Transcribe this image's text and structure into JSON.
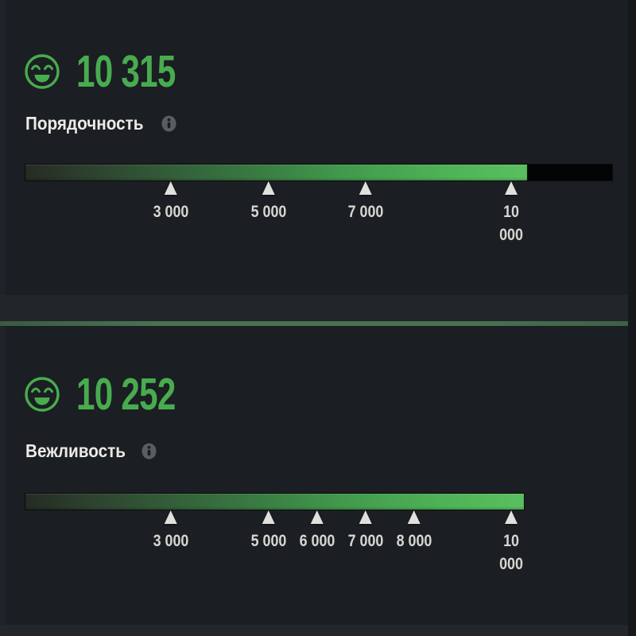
{
  "colors": {
    "accent_green": "#48ac4f",
    "bar_bright_green": "#5abf60",
    "divider_green": "#4a7252",
    "label_white": "#eceae6",
    "tick_gray": "#d6d6d2",
    "panel_bg": "#1b1e22",
    "gutter_bg": "#23262b",
    "empty_track": "#030404",
    "info_gray": "#595d61"
  },
  "panels": [
    {
      "name": "decency",
      "icon": "smiley-face-icon",
      "score_display": "10 315",
      "score_value": 10315,
      "label": "Порядочность",
      "track_full": true,
      "markers": [
        {
          "value": 3000,
          "label": "3 000"
        },
        {
          "value": 5000,
          "label": "5 000"
        },
        {
          "value": 7000,
          "label": "7 000"
        },
        {
          "value": 10000,
          "label": "10 000",
          "wrap": true
        }
      ]
    },
    {
      "name": "politeness",
      "icon": "smiley-face-icon",
      "score_display": "10 252",
      "score_value": 10252,
      "label": "Вежливость",
      "track_full": false,
      "markers": [
        {
          "value": 3000,
          "label": "3 000"
        },
        {
          "value": 5000,
          "label": "5 000"
        },
        {
          "value": 6000,
          "label": "6 000"
        },
        {
          "value": 7000,
          "label": "7 000"
        },
        {
          "value": 8000,
          "label": "8 000"
        },
        {
          "value": 10000,
          "label": "10 000",
          "wrap": true
        }
      ]
    }
  ],
  "chart_data": [
    {
      "type": "bar",
      "title": "Порядочность",
      "value": 10315,
      "axis_range": [
        0,
        12070
      ],
      "tick_values": [
        3000,
        5000,
        7000,
        10000
      ],
      "tick_labels": [
        "3 000",
        "5 000",
        "7 000",
        "10 000"
      ],
      "empty_tail_shown": true
    },
    {
      "type": "bar",
      "title": "Вежливость",
      "value": 10252,
      "axis_range": [
        0,
        12070
      ],
      "tick_values": [
        3000,
        5000,
        6000,
        7000,
        8000,
        10000
      ],
      "tick_labels": [
        "3 000",
        "5 000",
        "6 000",
        "7 000",
        "8 000",
        "10 000"
      ],
      "empty_tail_shown": false
    }
  ]
}
